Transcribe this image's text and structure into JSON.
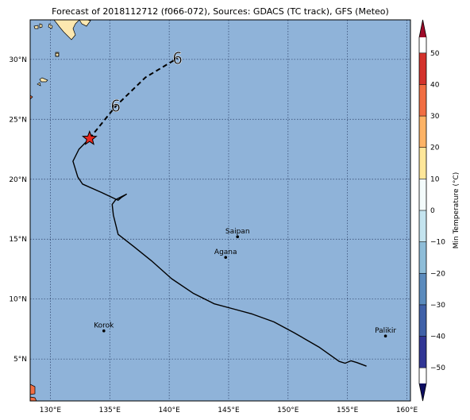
{
  "title": "Forecast of 2018112712 (f066-072), Sources: GDACS (TC track), GFS (Meteo)",
  "map": {
    "lon_range": [
      128.3,
      160.3
    ],
    "lat_range": [
      1.5,
      33.3
    ],
    "ocean_color": "#8fb3d9",
    "land_color": "#fde8b0",
    "grid_style": "dotted",
    "lon_ticks": [
      {
        "value": 130,
        "label": "130°E"
      },
      {
        "value": 135,
        "label": "135°E"
      },
      {
        "value": 140,
        "label": "140°E"
      },
      {
        "value": 145,
        "label": "145°E"
      },
      {
        "value": 150,
        "label": "150°E"
      },
      {
        "value": 155,
        "label": "155°E"
      },
      {
        "value": 160,
        "label": "160°E"
      }
    ],
    "lat_ticks": [
      {
        "value": 5,
        "label": "5°N"
      },
      {
        "value": 10,
        "label": "10°N"
      },
      {
        "value": 15,
        "label": "15°N"
      },
      {
        "value": 20,
        "label": "20°N"
      },
      {
        "value": 25,
        "label": "25°N"
      },
      {
        "value": 30,
        "label": "30°N"
      }
    ]
  },
  "cities": [
    {
      "name": "Saipan",
      "lon": 145.75,
      "lat": 15.2
    },
    {
      "name": "Agana",
      "lon": 144.75,
      "lat": 13.48
    },
    {
      "name": "Korok",
      "lon": 134.5,
      "lat": 7.35
    },
    {
      "name": "Palikir",
      "lon": 158.2,
      "lat": 6.92
    }
  ],
  "track_past": [
    [
      156.6,
      4.4
    ],
    [
      155.8,
      4.7
    ],
    [
      155.3,
      4.85
    ],
    [
      154.8,
      4.65
    ],
    [
      154.3,
      4.8
    ],
    [
      152.6,
      6.0
    ],
    [
      150.5,
      7.2
    ],
    [
      148.8,
      8.1
    ],
    [
      147.0,
      8.75
    ],
    [
      145.5,
      9.15
    ],
    [
      143.8,
      9.6
    ],
    [
      142.0,
      10.5
    ],
    [
      140.2,
      11.7
    ],
    [
      138.5,
      13.2
    ],
    [
      137.0,
      14.4
    ],
    [
      135.7,
      15.4
    ],
    [
      135.3,
      17.0
    ],
    [
      135.2,
      17.9
    ],
    [
      135.5,
      18.3
    ],
    [
      136.4,
      18.75
    ],
    [
      136.0,
      18.5
    ],
    [
      135.7,
      18.25
    ],
    [
      134.3,
      18.9
    ],
    [
      132.7,
      19.6
    ],
    [
      132.3,
      20.2
    ],
    [
      131.9,
      21.5
    ],
    [
      132.4,
      22.5
    ],
    [
      133.3,
      23.4
    ]
  ],
  "track_forecast": [
    [
      133.3,
      23.4
    ],
    [
      135.5,
      26.1
    ],
    [
      138.0,
      28.5
    ],
    [
      140.7,
      30.1
    ]
  ],
  "current_position": {
    "lon": 133.3,
    "lat": 23.4,
    "color": "#e8281e"
  },
  "storm_symbols": [
    {
      "lon": 135.5,
      "lat": 26.1,
      "glyph": "6"
    },
    {
      "lon": 140.7,
      "lat": 30.1,
      "glyph": "6"
    }
  ],
  "colorbar": {
    "title": "Min Temperature (°C)",
    "min": -55,
    "max": 55,
    "ticks": [
      {
        "value": -50,
        "label": "−50"
      },
      {
        "value": -40,
        "label": "−40"
      },
      {
        "value": -30,
        "label": "−30"
      },
      {
        "value": -20,
        "label": "−20"
      },
      {
        "value": -10,
        "label": "−10"
      },
      {
        "value": 0,
        "label": "0"
      },
      {
        "value": 10,
        "label": "10"
      },
      {
        "value": 20,
        "label": "20"
      },
      {
        "value": 30,
        "label": "30"
      },
      {
        "value": 40,
        "label": "40"
      },
      {
        "value": 50,
        "label": "50"
      }
    ],
    "bands": [
      {
        "from": -60,
        "to": -50,
        "color": "#0d0d60"
      },
      {
        "from": -50,
        "to": -40,
        "color": "#313695"
      },
      {
        "from": -40,
        "to": -30,
        "color": "#4061a8"
      },
      {
        "from": -30,
        "to": -20,
        "color": "#5b8bbd"
      },
      {
        "from": -20,
        "to": -10,
        "color": "#8ebdd8"
      },
      {
        "from": -10,
        "to": 0,
        "color": "#c4e4ef"
      },
      {
        "from": 0,
        "to": 10,
        "color": "#f3fbfb"
      },
      {
        "from": 10,
        "to": 20,
        "color": "#fee79a"
      },
      {
        "from": 20,
        "to": 30,
        "color": "#fdb366"
      },
      {
        "from": 30,
        "to": 40,
        "color": "#f16e43"
      },
      {
        "from": 40,
        "to": 50,
        "color": "#d3322c"
      },
      {
        "from": 50,
        "to": 60,
        "color": "#9e0a29"
      }
    ]
  }
}
